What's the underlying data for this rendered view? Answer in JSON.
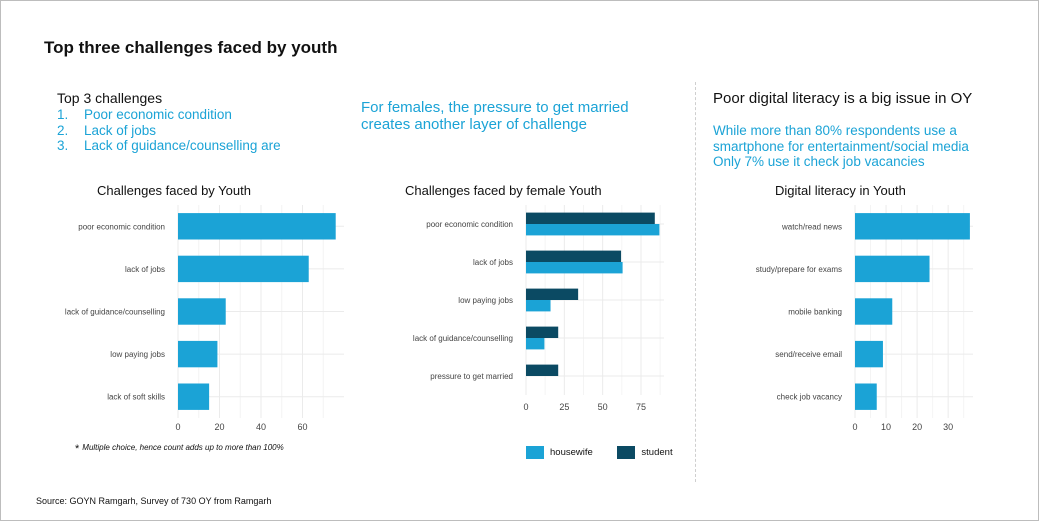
{
  "header": {
    "title": "Top three challenges faced by youth"
  },
  "panel1": {
    "heading": "Top 3 challenges",
    "items": [
      {
        "num": "1.",
        "text": "Poor economic condition"
      },
      {
        "num": "2.",
        "text": "Lack of jobs"
      },
      {
        "num": "3.",
        "text": "Lack of guidance/counselling are"
      }
    ]
  },
  "panel2": {
    "line1": "For females, the pressure to get married",
    "line2": "creates another layer of challenge"
  },
  "panel3": {
    "heading": "Poor digital literacy is a big issue in OY",
    "line1": "While more than 80% respondents use a",
    "line2": "smartphone for entertainment/social media",
    "line3": "Only 7% use it check job vacancies"
  },
  "footnote": {
    "star": "*",
    "text": "Multiple choice, hence count adds up to more than 100%"
  },
  "source": "Source: GOYN Ramgarh, Survey of 730 OY from Ramgarh",
  "colors": {
    "light_blue": "#1ba3d6",
    "dark_teal": "#0b4a63",
    "grid": "#ebebeb"
  },
  "chart_data": [
    {
      "type": "bar",
      "orientation": "horizontal",
      "title": "Challenges faced by Youth",
      "categories": [
        "poor economic condition",
        "lack of jobs",
        "lack of guidance/counselling",
        "low paying jobs",
        "lack of soft skills"
      ],
      "values": [
        76,
        63,
        23,
        19,
        15
      ],
      "xlim": [
        0,
        80
      ],
      "xticks": [
        0,
        20,
        40,
        60
      ],
      "color": "#1ba3d6"
    },
    {
      "type": "bar",
      "orientation": "horizontal",
      "title": "Challenges faced by female Youth",
      "categories": [
        "poor economic condition",
        "lack of jobs",
        "low paying jobs",
        "lack of guidance/counselling",
        "pressure to get married"
      ],
      "series": [
        {
          "name": "housewife",
          "values": [
            87,
            63,
            16,
            12,
            0
          ],
          "color": "#1ba3d6"
        },
        {
          "name": "student",
          "values": [
            84,
            62,
            34,
            21,
            21
          ],
          "color": "#0b4a63"
        }
      ],
      "xlim": [
        0,
        90
      ],
      "xticks": [
        0,
        25,
        50,
        75
      ],
      "legend": "bottom"
    },
    {
      "type": "bar",
      "orientation": "horizontal",
      "title": "Digital literacy in Youth",
      "categories": [
        "watch/read news",
        "study/prepare for exams",
        "mobile banking",
        "send/receive email",
        "check job vacancy"
      ],
      "values": [
        37,
        24,
        12,
        9,
        7
      ],
      "xlim": [
        0,
        38
      ],
      "xticks": [
        0,
        10,
        20,
        30
      ],
      "color": "#1ba3d6"
    }
  ]
}
